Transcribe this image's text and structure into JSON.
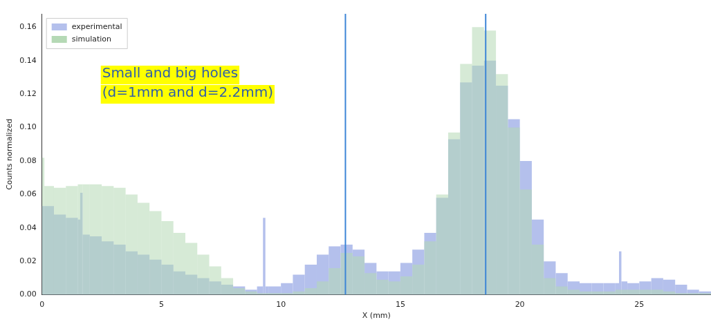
{
  "chart_data": {
    "type": "histogram",
    "xlabel": "X (mm)",
    "ylabel": "Counts normalized",
    "annotations": [
      "Small and big holes\n(d=1mm and d=2.2mm)"
    ],
    "bins": [
      0,
      0.1,
      0.5,
      1,
      1.5,
      1.6,
      1.7,
      2,
      2.5,
      3,
      3.5,
      4,
      4.5,
      5,
      5.5,
      6,
      6.5,
      7,
      7.5,
      8,
      8.5,
      9,
      9.25,
      9.35,
      9.5,
      10,
      10.5,
      11,
      11.5,
      12,
      12.5,
      13,
      13.5,
      14,
      14.5,
      15,
      15.5,
      16,
      16.5,
      17,
      17.5,
      18,
      18.5,
      19,
      19.5,
      20,
      20.5,
      21,
      21.5,
      22,
      22.5,
      23,
      23.5,
      24,
      24.15,
      24.25,
      24.5,
      25,
      25.5,
      26,
      26.5,
      27,
      27.5,
      28
    ],
    "series": [
      {
        "name": "experimental",
        "color": "#b4c0ec",
        "values": [
          0.053,
          0.053,
          0.048,
          0.046,
          0.045,
          0.061,
          0.036,
          0.035,
          0.032,
          0.03,
          0.026,
          0.024,
          0.021,
          0.018,
          0.014,
          0.012,
          0.01,
          0.008,
          0.006,
          0.005,
          0.003,
          0.005,
          0.046,
          0.005,
          0.005,
          0.007,
          0.012,
          0.018,
          0.024,
          0.029,
          0.03,
          0.027,
          0.019,
          0.014,
          0.014,
          0.019,
          0.027,
          0.037,
          0.058,
          0.093,
          0.127,
          0.137,
          0.14,
          0.125,
          0.105,
          0.08,
          0.045,
          0.02,
          0.013,
          0.008,
          0.007,
          0.007,
          0.007,
          0.007,
          0.026,
          0.008,
          0.007,
          0.008,
          0.01,
          0.009,
          0.006,
          0.003,
          0.002
        ]
      },
      {
        "name": "simulation",
        "color": "#b5d9b5",
        "values": [
          0.082,
          0.065,
          0.064,
          0.065,
          0.066,
          0.066,
          0.066,
          0.066,
          0.065,
          0.064,
          0.06,
          0.055,
          0.05,
          0.044,
          0.037,
          0.031,
          0.024,
          0.017,
          0.01,
          0.004,
          0.002,
          0.001,
          0.001,
          0.001,
          0.001,
          0.001,
          0.002,
          0.004,
          0.008,
          0.016,
          0.025,
          0.023,
          0.013,
          0.009,
          0.008,
          0.011,
          0.018,
          0.032,
          0.06,
          0.097,
          0.138,
          0.16,
          0.158,
          0.132,
          0.1,
          0.063,
          0.03,
          0.01,
          0.005,
          0.003,
          0.002,
          0.002,
          0.002,
          0.003,
          0.003,
          0.003,
          0.003,
          0.003,
          0.003,
          0.002,
          0.001,
          0.001,
          0.001
        ]
      }
    ],
    "xlim": [
      0,
      28
    ],
    "xticks": [
      0,
      5,
      10,
      15,
      20,
      25
    ],
    "ylim": [
      0,
      0.168
    ],
    "yticks": [
      {
        "value": 0,
        "label": "0.00"
      },
      {
        "value": 0.02,
        "label": "0.02"
      },
      {
        "value": 0.04,
        "label": "0.04"
      },
      {
        "value": 0.06,
        "label": "0.06"
      },
      {
        "value": 0.08,
        "label": "0.08"
      },
      {
        "value": 0.1,
        "label": "0.10"
      },
      {
        "value": 0.12,
        "label": "0.12"
      },
      {
        "value": 0.14,
        "label": "0.14"
      },
      {
        "value": 0.16,
        "label": "0.16"
      }
    ],
    "ref_lines": [
      {
        "axis": "x",
        "value": 12.7,
        "color": "#3d85d6"
      },
      {
        "axis": "x",
        "value": 18.57,
        "color": "#3d85d6"
      }
    ],
    "legend": "top left"
  }
}
